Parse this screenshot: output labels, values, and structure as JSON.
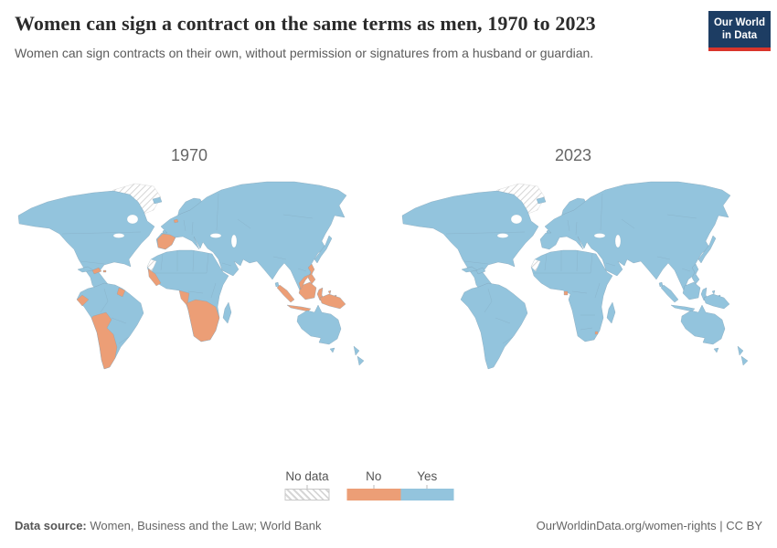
{
  "header": {
    "title": "Women can sign a contract on the same terms as men, 1970 to 2023",
    "subtitle": "Women can sign contracts on their own, without permission or signatures from a husband or guardian.",
    "logo": {
      "line1": "Our World",
      "line2": "in Data"
    }
  },
  "colors": {
    "yes": "#93C4DD",
    "no": "#EC9E76",
    "border": "#7C9DB2",
    "hatch_line": "#D6D6D6",
    "hatch_border": "#C9C9C9",
    "logo_bg": "#1D3D63",
    "logo_accent": "#D9352B"
  },
  "maps": {
    "panels": [
      {
        "label": "1970",
        "no": [
          "hispaniola",
          "puerto-rico",
          "ecuador",
          "suriname",
          "southern-cone",
          "spain",
          "belgium",
          "west-africa",
          "gabon-congo",
          "southern-africa",
          "malaya",
          "sumatra",
          "java",
          "borneo",
          "sulawesi",
          "moluccas",
          "philippines",
          "new-guinea"
        ],
        "no_data": [
          "greenland",
          "western-sahara"
        ]
      },
      {
        "label": "2023",
        "no": [
          "equatorial-guinea",
          "eswatini"
        ],
        "no_data": [
          "greenland",
          "western-sahara"
        ]
      }
    ]
  },
  "legend": {
    "no_data_label": "No data",
    "no_label": "No",
    "yes_label": "Yes"
  },
  "footer": {
    "source_label": "Data source:",
    "source_text": " Women, Business and the Law; World Bank",
    "right_text": "OurWorldinData.org/women-rights | CC BY"
  },
  "chart_data": {
    "type": "choropleth_map",
    "title": "Women can sign a contract on the same terms as men, 1970 to 2023",
    "subtitle": "Women can sign contracts on their own, without permission or signatures from a husband or guardian.",
    "years": [
      "1970",
      "2023"
    ],
    "legend_categories": [
      "No data",
      "No",
      "Yes"
    ],
    "legend_colors": {
      "No data": "hatched",
      "No": "#EC9E76",
      "Yes": "#93C4DD"
    },
    "values": {
      "1970": {
        "default": "Yes",
        "No": [
          "Spain",
          "Belgium",
          "Haiti",
          "Dominican Republic",
          "Puerto Rico",
          "Ecuador",
          "Suriname",
          "Bolivia",
          "Chile",
          "Argentina",
          "Guinea",
          "Sierra Leone",
          "Liberia",
          "Gabon",
          "Congo",
          "Angola",
          "Zambia",
          "Zimbabwe",
          "Namibia",
          "Botswana",
          "South Africa",
          "Lesotho",
          "Eswatini",
          "Mozambique",
          "Malaysia",
          "Indonesia",
          "Philippines",
          "Papua New Guinea"
        ],
        "No data": [
          "Greenland",
          "Western Sahara"
        ]
      },
      "2023": {
        "default": "Yes",
        "No": [
          "Equatorial Guinea",
          "Eswatini"
        ],
        "No data": [
          "Greenland",
          "Western Sahara"
        ]
      }
    },
    "source": "Women, Business and the Law; World Bank",
    "attribution": "OurWorldinData.org/women-rights | CC BY"
  }
}
